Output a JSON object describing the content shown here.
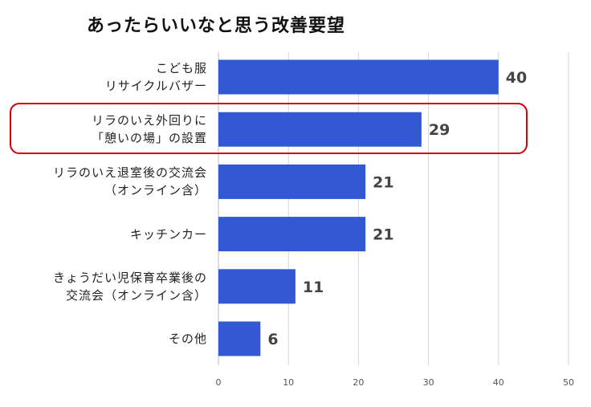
{
  "chart_data": {
    "type": "bar",
    "orientation": "horizontal",
    "title": "あったらいいなと思う改善要望",
    "categories": [
      [
        "こども服",
        "リサイクルバザー"
      ],
      [
        "リラのいえ外回りに",
        "「憩いの場」の設置"
      ],
      [
        "リラのいえ退室後の交流会",
        "（オンライン含）"
      ],
      [
        "キッチンカー"
      ],
      [
        "きょうだい児保育卒業後の",
        "交流会（オンライン含）"
      ],
      [
        "その他"
      ]
    ],
    "values": [
      40,
      29,
      21,
      21,
      11,
      6
    ],
    "value_labels": [
      "40",
      "29",
      "21",
      "21",
      "11",
      "6"
    ],
    "xlim": [
      0,
      50
    ],
    "xticks": [
      "0",
      "10",
      "20",
      "30",
      "40",
      "50"
    ],
    "grid": true,
    "highlighted_category_index": 1,
    "bar_color": "#3358d4",
    "highlight_color": "#d40000"
  }
}
